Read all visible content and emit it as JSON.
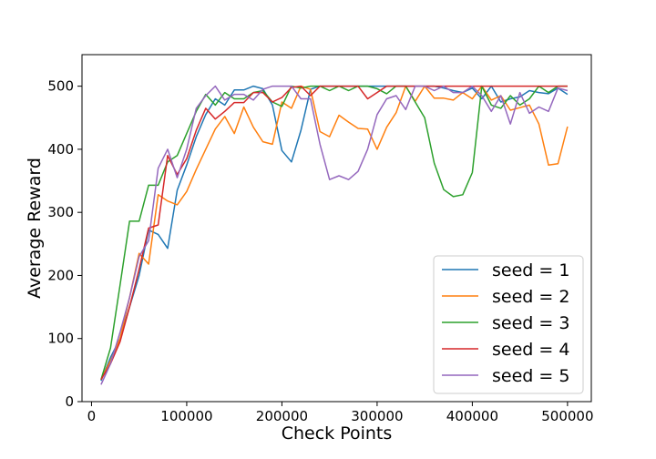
{
  "chart_data": {
    "type": "line",
    "title": "",
    "xlabel": "Check Points",
    "ylabel": "Average Reward",
    "xlim": [
      -10000,
      525000
    ],
    "ylim": [
      0,
      550
    ],
    "xticks": [
      0,
      100000,
      200000,
      300000,
      400000,
      500000
    ],
    "xtick_labels": [
      "0",
      "100000",
      "200000",
      "300000",
      "400000",
      "500000"
    ],
    "yticks": [
      0,
      100,
      200,
      300,
      400,
      500
    ],
    "ytick_labels": [
      "0",
      "100",
      "200",
      "300",
      "400",
      "500"
    ],
    "grid": false,
    "legend_position": "lower right",
    "x": [
      10000,
      20000,
      30000,
      40000,
      50000,
      60000,
      70000,
      80000,
      90000,
      100000,
      110000,
      120000,
      130000,
      140000,
      150000,
      160000,
      170000,
      180000,
      190000,
      200000,
      210000,
      220000,
      230000,
      240000,
      250000,
      260000,
      270000,
      280000,
      290000,
      300000,
      310000,
      320000,
      330000,
      340000,
      350000,
      360000,
      370000,
      380000,
      390000,
      400000,
      410000,
      420000,
      430000,
      440000,
      450000,
      460000,
      470000,
      480000,
      490000,
      500000
    ],
    "series": [
      {
        "name": "seed = 1",
        "color": "#1f77b4",
        "values": [
          33,
          70,
          100,
          150,
          200,
          272,
          265,
          243,
          335,
          375,
          420,
          455,
          480,
          470,
          494,
          494,
          500,
          496,
          470,
          398,
          380,
          430,
          495,
          500,
          500,
          500,
          500,
          500,
          500,
          500,
          500,
          500,
          500,
          500,
          500,
          500,
          497,
          493,
          490,
          497,
          480,
          500,
          475,
          480,
          483,
          493,
          490,
          488,
          497,
          487
        ]
      },
      {
        "name": "seed = 2",
        "color": "#ff7f0e",
        "values": [
          35,
          65,
          100,
          165,
          235,
          218,
          328,
          318,
          312,
          333,
          368,
          400,
          432,
          452,
          425,
          467,
          435,
          412,
          408,
          475,
          465,
          500,
          495,
          428,
          420,
          454,
          443,
          433,
          432,
          400,
          435,
          458,
          500,
          476,
          500,
          481,
          481,
          478,
          490,
          480,
          500,
          478,
          485,
          462,
          466,
          470,
          440,
          375,
          377,
          436
        ]
      },
      {
        "name": "seed = 3",
        "color": "#2ca02c",
        "values": [
          35,
          85,
          185,
          286,
          286,
          343,
          343,
          380,
          390,
          425,
          460,
          487,
          470,
          490,
          480,
          480,
          490,
          493,
          475,
          468,
          500,
          497,
          500,
          500,
          493,
          500,
          493,
          500,
          500,
          496,
          488,
          500,
          500,
          475,
          450,
          378,
          336,
          325,
          328,
          363,
          500,
          470,
          465,
          485,
          470,
          480,
          500,
          490,
          500,
          500
        ]
      },
      {
        "name": "seed = 4",
        "color": "#d62728",
        "values": [
          35,
          60,
          95,
          150,
          210,
          275,
          280,
          390,
          360,
          385,
          430,
          465,
          448,
          460,
          474,
          474,
          490,
          490,
          475,
          482,
          498,
          500,
          485,
          500,
          500,
          500,
          500,
          500,
          480,
          490,
          500,
          500,
          500,
          500,
          500,
          500,
          500,
          500,
          500,
          500,
          500,
          500,
          500,
          500,
          500,
          500,
          500,
          500,
          500,
          500
        ]
      },
      {
        "name": "seed = 5",
        "color": "#9467bd",
        "values": [
          27,
          60,
          110,
          165,
          230,
          255,
          370,
          400,
          355,
          400,
          465,
          485,
          500,
          478,
          487,
          487,
          478,
          495,
          500,
          500,
          500,
          480,
          480,
          408,
          352,
          358,
          352,
          365,
          400,
          455,
          480,
          485,
          463,
          500,
          500,
          493,
          500,
          490,
          490,
          500,
          485,
          460,
          485,
          440,
          490,
          457,
          467,
          460,
          497,
          493
        ]
      }
    ]
  }
}
